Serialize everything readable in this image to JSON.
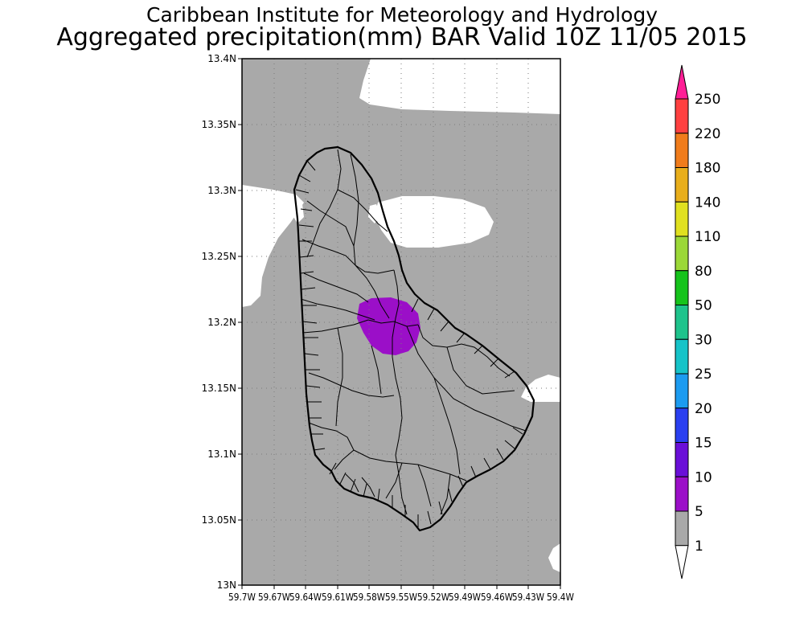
{
  "title_line1": "Caribbean Institute for Meteorology and Hydrology",
  "title_line2": "Aggregated precipitation(mm) BAR Valid 10Z 11/05 2015",
  "lat_labels": [
    "13.4N",
    "13.35N",
    "13.3N",
    "13.25N",
    "13.2N",
    "13.15N",
    "13.1N",
    "13.05N",
    "13N"
  ],
  "lon_labels": [
    "59.7W",
    "59.67W",
    "59.64W",
    "59.61W",
    "59.58W",
    "59.55W",
    "59.52W",
    "59.49W",
    "59.46W",
    "59.43W",
    "59.4W"
  ],
  "colorbar": {
    "labels": [
      "1",
      "5",
      "10",
      "15",
      "20",
      "25",
      "30",
      "50",
      "80",
      "110",
      "140",
      "180",
      "220",
      "250"
    ],
    "colors": [
      "#ffffff",
      "#a9a9a9",
      "#9b0fc8",
      "#6a0fd8",
      "#2a3ff0",
      "#1c9bf0",
      "#16c3c8",
      "#1ec38c",
      "#16c31c",
      "#9bd838",
      "#e0e020",
      "#e8ae1c",
      "#f07c1c",
      "#ff4040",
      "#ff1e96"
    ]
  },
  "map": {
    "region": "Barbados",
    "lat_range": [
      13.0,
      13.4
    ],
    "lon_range": [
      -59.7,
      -59.4
    ],
    "background_category": "1-5 mm",
    "max_area_category": "5-10 mm"
  }
}
